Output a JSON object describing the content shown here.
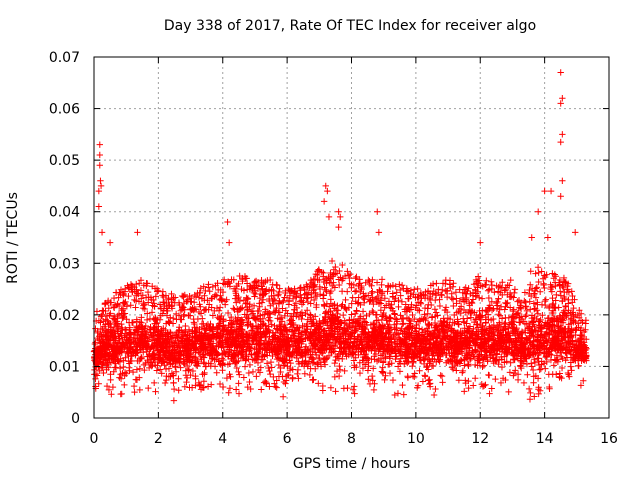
{
  "chart_data": {
    "type": "scatter",
    "title": "Day 338 of 2017, Rate Of TEC Index for receiver algo",
    "xlabel": "GPS time / hours",
    "ylabel": "ROTI / TECUs",
    "xlim": [
      0,
      16
    ],
    "ylim": [
      0,
      0.07
    ],
    "xticks": [
      0,
      2,
      4,
      6,
      8,
      10,
      12,
      14,
      16
    ],
    "xtick_labels": [
      "0",
      "2",
      "4",
      "6",
      "8",
      "10",
      "12",
      "14",
      "16"
    ],
    "yticks": [
      0,
      0.01,
      0.02,
      0.03,
      0.04,
      0.05,
      0.06,
      0.07
    ],
    "ytick_labels": [
      "0",
      "0.01",
      "0.02",
      "0.03",
      "0.04",
      "0.05",
      "0.06",
      "0.07"
    ],
    "grid": true,
    "marker": "+",
    "color": "#ff0000",
    "x_coverage": [
      0,
      15.3
    ],
    "envelope": [
      [
        0.0,
        0.005,
        0.02
      ],
      [
        0.5,
        0.004,
        0.024
      ],
      [
        1.0,
        0.004,
        0.026
      ],
      [
        1.5,
        0.004,
        0.027
      ],
      [
        2.0,
        0.004,
        0.025
      ],
      [
        2.5,
        0.003,
        0.024
      ],
      [
        3.0,
        0.004,
        0.024
      ],
      [
        3.5,
        0.004,
        0.026
      ],
      [
        4.0,
        0.004,
        0.027
      ],
      [
        4.5,
        0.004,
        0.028
      ],
      [
        5.0,
        0.004,
        0.027
      ],
      [
        5.5,
        0.004,
        0.027
      ],
      [
        6.0,
        0.004,
        0.025
      ],
      [
        6.5,
        0.004,
        0.026
      ],
      [
        7.0,
        0.004,
        0.029
      ],
      [
        7.5,
        0.004,
        0.031
      ],
      [
        8.0,
        0.004,
        0.028
      ],
      [
        8.5,
        0.004,
        0.027
      ],
      [
        9.0,
        0.004,
        0.027
      ],
      [
        9.5,
        0.004,
        0.026
      ],
      [
        10.0,
        0.005,
        0.025
      ],
      [
        10.5,
        0.004,
        0.026
      ],
      [
        11.0,
        0.004,
        0.027
      ],
      [
        11.5,
        0.004,
        0.025
      ],
      [
        12.0,
        0.004,
        0.028
      ],
      [
        12.5,
        0.004,
        0.026
      ],
      [
        13.0,
        0.004,
        0.027
      ],
      [
        13.3,
        0.006,
        0.022
      ],
      [
        13.6,
        0.002,
        0.03
      ],
      [
        14.0,
        0.002,
        0.029
      ],
      [
        14.3,
        0.005,
        0.028
      ],
      [
        14.7,
        0.005,
        0.027
      ],
      [
        15.0,
        0.006,
        0.022
      ],
      [
        15.3,
        0.006,
        0.019
      ]
    ],
    "outliers": [
      {
        "x": 0.18,
        "y": 0.053
      },
      {
        "x": 0.18,
        "y": 0.051
      },
      {
        "x": 0.18,
        "y": 0.049
      },
      {
        "x": 0.2,
        "y": 0.046
      },
      {
        "x": 0.22,
        "y": 0.045
      },
      {
        "x": 0.15,
        "y": 0.044
      },
      {
        "x": 0.15,
        "y": 0.041
      },
      {
        "x": 0.25,
        "y": 0.036
      },
      {
        "x": 0.5,
        "y": 0.034
      },
      {
        "x": 1.35,
        "y": 0.036
      },
      {
        "x": 4.15,
        "y": 0.038
      },
      {
        "x": 4.2,
        "y": 0.034
      },
      {
        "x": 7.2,
        "y": 0.045
      },
      {
        "x": 7.25,
        "y": 0.044
      },
      {
        "x": 7.15,
        "y": 0.042
      },
      {
        "x": 7.3,
        "y": 0.039
      },
      {
        "x": 7.6,
        "y": 0.04
      },
      {
        "x": 7.65,
        "y": 0.039
      },
      {
        "x": 7.6,
        "y": 0.037
      },
      {
        "x": 8.8,
        "y": 0.04
      },
      {
        "x": 8.85,
        "y": 0.036
      },
      {
        "x": 12.0,
        "y": 0.034
      },
      {
        "x": 13.6,
        "y": 0.035
      },
      {
        "x": 13.8,
        "y": 0.04
      },
      {
        "x": 14.0,
        "y": 0.044
      },
      {
        "x": 14.1,
        "y": 0.035
      },
      {
        "x": 14.2,
        "y": 0.044
      },
      {
        "x": 14.5,
        "y": 0.067
      },
      {
        "x": 14.55,
        "y": 0.062
      },
      {
        "x": 14.5,
        "y": 0.061
      },
      {
        "x": 14.55,
        "y": 0.055
      },
      {
        "x": 14.5,
        "y": 0.0535
      },
      {
        "x": 14.55,
        "y": 0.046
      },
      {
        "x": 14.5,
        "y": 0.043
      },
      {
        "x": 14.95,
        "y": 0.036
      }
    ]
  }
}
